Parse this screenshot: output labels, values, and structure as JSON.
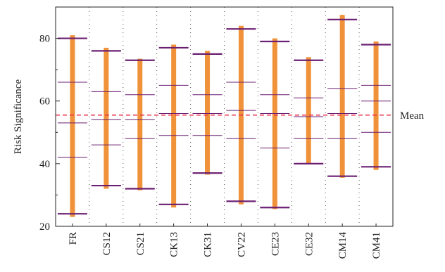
{
  "chart_data": {
    "type": "range-bar",
    "ylabel": "Risk Significance",
    "ylim": [
      20,
      90
    ],
    "yticks": [
      20,
      40,
      60,
      80
    ],
    "grid": "vertical-dotted",
    "categories": [
      "FR",
      "CS12",
      "CS21",
      "CK13",
      "CK31",
      "CV22",
      "CE23",
      "CE32",
      "CM14",
      "CM41"
    ],
    "ranges": [
      {
        "min": 23,
        "max": 81
      },
      {
        "min": 32,
        "max": 77
      },
      {
        "min": 31.5,
        "max": 73.5
      },
      {
        "min": 26,
        "max": 78
      },
      {
        "min": 36.5,
        "max": 76
      },
      {
        "min": 27,
        "max": 84
      },
      {
        "min": 25.5,
        "max": 80
      },
      {
        "min": 40,
        "max": 74
      },
      {
        "min": 35.5,
        "max": 87.5
      },
      {
        "min": 38,
        "max": 79
      }
    ],
    "markers": [
      [
        24,
        42,
        53,
        66,
        80
      ],
      [
        33,
        46,
        54,
        63,
        76
      ],
      [
        32,
        48,
        54,
        62,
        73
      ],
      [
        27,
        49,
        56,
        65,
        77
      ],
      [
        37,
        49,
        56,
        62,
        75
      ],
      [
        28,
        48,
        57,
        66,
        83
      ],
      [
        26,
        45,
        56,
        62,
        79
      ],
      [
        40,
        48,
        55,
        61,
        73
      ],
      [
        36,
        48,
        56,
        64,
        86
      ],
      [
        39,
        50,
        60,
        65,
        78
      ]
    ],
    "mean": {
      "value": 55.5,
      "label": "Mean"
    },
    "colors": {
      "bar": "#f0923a",
      "marker": "#6b1f72",
      "mean": "#e8334e",
      "grid": "#555555"
    }
  }
}
